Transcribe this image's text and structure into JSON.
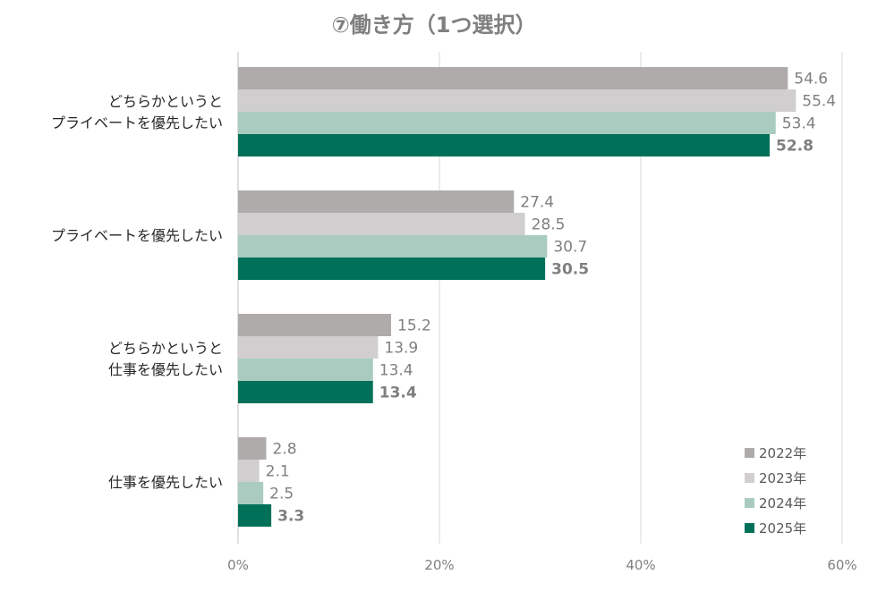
{
  "chart_data": {
    "type": "bar",
    "orientation": "horizontal",
    "title": "⑦働き方（1つ選択）",
    "categories": [
      [
        "どちらかというと",
        "プライベートを優先したい"
      ],
      [
        "プライベートを優先したい"
      ],
      [
        "どちらかというと",
        "仕事を優先したい"
      ],
      [
        "仕事を優先したい"
      ]
    ],
    "series": [
      {
        "name": "2022年",
        "color": "#afabab",
        "values": [
          54.6,
          27.4,
          15.2,
          2.8
        ],
        "labels": [
          "54.6",
          "27.4",
          "15.2",
          "2.8"
        ],
        "bold": false
      },
      {
        "name": "2023年",
        "color": "#d0cece",
        "values": [
          55.4,
          28.5,
          13.9,
          2.1
        ],
        "labels": [
          "55.4",
          "28.5",
          "13.9",
          "2.1"
        ],
        "bold": false
      },
      {
        "name": "2024年",
        "color": "#a9cbc0",
        "values": [
          53.4,
          30.7,
          13.4,
          2.5
        ],
        "labels": [
          "53.4",
          "30.7",
          "13.4",
          "2.5"
        ],
        "bold": false
      },
      {
        "name": "2025年",
        "color": "#007158",
        "values": [
          52.8,
          30.5,
          13.4,
          3.3
        ],
        "labels": [
          "52.8",
          "30.5",
          "13.4",
          "3.3"
        ],
        "bold": true
      }
    ],
    "xlim": [
      0,
      60
    ],
    "xticks": [
      0,
      20,
      40,
      60
    ],
    "xtick_labels": [
      "0%",
      "20%",
      "40%",
      "60%"
    ],
    "grid": true,
    "legend_position": "bottom-right"
  }
}
